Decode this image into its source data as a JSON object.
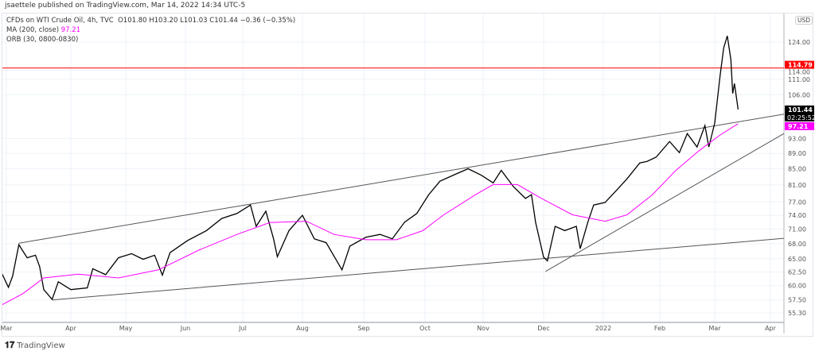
{
  "publisher": "jsaettele published on TradingView.com, Mar 14, 2022 14:34 UTC-5",
  "legend": {
    "symbol": "CFDs on WTI Crude Oil, 4h, TVC",
    "ohlc": "O101.80  H103.20  L101.03  C101.44  −0.36 (−0.35%)",
    "ma_label": "MA (200, close)",
    "ma_value": "97.21",
    "orb_label": "ORB (30, 0800-0830)"
  },
  "currency": "USD",
  "logo_text": "TradingView",
  "chart_data": {
    "type": "line",
    "y_scale": "log",
    "ylim": [
      54.5,
      132
    ],
    "grid": true,
    "y_ticks": [
      "124.00",
      "114.00",
      "111.00",
      "106.00",
      "93.00",
      "89.00",
      "85.00",
      "81.00",
      "77.00",
      "74.00",
      "71.00",
      "68.00",
      "65.00",
      "62.50",
      "60.00",
      "57.50",
      "55.30"
    ],
    "x_ticks": [
      {
        "label": "Mar",
        "date": "2021-03-01"
      },
      {
        "label": "Apr",
        "date": "2021-04-01"
      },
      {
        "label": "May",
        "date": "2021-05-01"
      },
      {
        "label": "Jun",
        "date": "2021-06-01"
      },
      {
        "label": "Jul",
        "date": "2021-07-01"
      },
      {
        "label": "Aug",
        "date": "2021-08-01"
      },
      {
        "label": "Sep",
        "date": "2021-09-01"
      },
      {
        "label": "Oct",
        "date": "2021-10-01"
      },
      {
        "label": "Nov",
        "date": "2021-11-01"
      },
      {
        "label": "Dec",
        "date": "2021-12-01"
      },
      {
        "label": "2022",
        "date": "2022-01-01"
      },
      {
        "label": "Feb",
        "date": "2022-02-01"
      },
      {
        "label": "Mar",
        "date": "2022-03-01"
      },
      {
        "label": "Apr",
        "date": "2022-04-01"
      }
    ],
    "series": [
      {
        "name": "CFDs on WTI Crude Oil",
        "color": "#000000",
        "points": [
          [
            "2021-02-26",
            62.9
          ],
          [
            "2021-03-02",
            59.7
          ],
          [
            "2021-03-04",
            61.7
          ],
          [
            "2021-03-07",
            67.8
          ],
          [
            "2021-03-11",
            65.2
          ],
          [
            "2021-03-15",
            65.7
          ],
          [
            "2021-03-17",
            63.5
          ],
          [
            "2021-03-19",
            59.3
          ],
          [
            "2021-03-23",
            57.6
          ],
          [
            "2021-03-26",
            60.7
          ],
          [
            "2021-04-01",
            59.3
          ],
          [
            "2021-04-10",
            59.6
          ],
          [
            "2021-04-13",
            63.1
          ],
          [
            "2021-04-20",
            62.0
          ],
          [
            "2021-04-27",
            65.2
          ],
          [
            "2021-05-04",
            66.0
          ],
          [
            "2021-05-10",
            64.9
          ],
          [
            "2021-05-16",
            65.7
          ],
          [
            "2021-05-20",
            61.9
          ],
          [
            "2021-05-24",
            66.2
          ],
          [
            "2021-06-02",
            68.6
          ],
          [
            "2021-06-12",
            70.7
          ],
          [
            "2021-06-20",
            73.3
          ],
          [
            "2021-06-28",
            74.4
          ],
          [
            "2021-07-05",
            76.3
          ],
          [
            "2021-07-08",
            71.6
          ],
          [
            "2021-07-13",
            74.9
          ],
          [
            "2021-07-17",
            69.0
          ],
          [
            "2021-07-19",
            65.4
          ],
          [
            "2021-07-25",
            70.7
          ],
          [
            "2021-08-01",
            74.0
          ],
          [
            "2021-08-07",
            69.0
          ],
          [
            "2021-08-13",
            68.2
          ],
          [
            "2021-08-21",
            62.9
          ],
          [
            "2021-08-25",
            67.5
          ],
          [
            "2021-09-02",
            69.3
          ],
          [
            "2021-09-09",
            69.9
          ],
          [
            "2021-09-15",
            69.0
          ],
          [
            "2021-09-21",
            72.5
          ],
          [
            "2021-09-27",
            74.4
          ],
          [
            "2021-10-03",
            78.7
          ],
          [
            "2021-10-09",
            81.9
          ],
          [
            "2021-10-18",
            83.8
          ],
          [
            "2021-10-24",
            85.0
          ],
          [
            "2021-10-31",
            83.4
          ],
          [
            "2021-11-06",
            81.5
          ],
          [
            "2021-11-10",
            84.6
          ],
          [
            "2021-11-16",
            80.6
          ],
          [
            "2021-11-22",
            77.8
          ],
          [
            "2021-11-25",
            78.7
          ],
          [
            "2021-11-27",
            72.5
          ],
          [
            "2021-12-01",
            65.3
          ],
          [
            "2021-12-03",
            64.6
          ],
          [
            "2021-12-07",
            71.6
          ],
          [
            "2021-12-12",
            70.7
          ],
          [
            "2021-12-18",
            71.6
          ],
          [
            "2021-12-20",
            67.0
          ],
          [
            "2021-12-24",
            72.5
          ],
          [
            "2021-12-27",
            76.3
          ],
          [
            "2022-01-02",
            76.9
          ],
          [
            "2022-01-08",
            79.6
          ],
          [
            "2022-01-14",
            82.5
          ],
          [
            "2022-01-21",
            86.5
          ],
          [
            "2022-01-25",
            86.9
          ],
          [
            "2022-01-30",
            88.0
          ],
          [
            "2022-02-06",
            92.2
          ],
          [
            "2022-02-11",
            89.2
          ],
          [
            "2022-02-15",
            94.4
          ],
          [
            "2022-02-20",
            90.7
          ],
          [
            "2022-02-24",
            96.7
          ],
          [
            "2022-02-26",
            90.7
          ],
          [
            "2022-03-01",
            97.4
          ],
          [
            "2022-03-04",
            112.3
          ],
          [
            "2022-03-06",
            121.9
          ],
          [
            "2022-03-08",
            126.3
          ],
          [
            "2022-03-10",
            117.7
          ],
          [
            "2022-03-11",
            106.4
          ],
          [
            "2022-03-12",
            109.6
          ],
          [
            "2022-03-14",
            101.44
          ]
        ]
      },
      {
        "name": "MA (200, close)",
        "color": "#ff00ff",
        "points": [
          [
            "2021-02-26",
            56.5
          ],
          [
            "2021-03-09",
            58.6
          ],
          [
            "2021-03-19",
            61.4
          ],
          [
            "2021-04-05",
            62.1
          ],
          [
            "2021-04-27",
            61.4
          ],
          [
            "2021-05-18",
            62.9
          ],
          [
            "2021-06-08",
            66.7
          ],
          [
            "2021-06-28",
            69.9
          ],
          [
            "2021-07-15",
            72.4
          ],
          [
            "2021-08-03",
            72.7
          ],
          [
            "2021-08-17",
            69.9
          ],
          [
            "2021-09-02",
            68.8
          ],
          [
            "2021-09-17",
            68.8
          ],
          [
            "2021-09-30",
            70.7
          ],
          [
            "2021-10-11",
            74.1
          ],
          [
            "2021-10-28",
            78.7
          ],
          [
            "2021-11-06",
            81.1
          ],
          [
            "2021-11-18",
            81.1
          ],
          [
            "2021-11-30",
            77.8
          ],
          [
            "2021-12-16",
            74.1
          ],
          [
            "2022-01-02",
            72.7
          ],
          [
            "2022-01-14",
            74.1
          ],
          [
            "2022-01-28",
            78.7
          ],
          [
            "2022-02-09",
            84.5
          ],
          [
            "2022-02-21",
            89.7
          ],
          [
            "2022-03-04",
            94.0
          ],
          [
            "2022-03-14",
            97.21
          ]
        ]
      }
    ],
    "trendlines": [
      {
        "from": [
          "2021-03-07",
          68.1
        ],
        "to": [
          "2022-03-01",
          96.6
        ],
        "color": "#555555"
      },
      {
        "from": [
          "2021-03-23",
          57.5
        ],
        "to": [
          "2022-03-01",
          67.9
        ],
        "color": "#555555"
      },
      {
        "from": [
          "2021-12-02",
          62.6
        ],
        "to": [
          "2022-03-01",
          83.8
        ],
        "color": "#555555"
      }
    ],
    "horizontal_line": {
      "value": 114.79,
      "label": "114.79",
      "color": "#ff0000"
    },
    "price_labels": [
      {
        "value": 101.44,
        "label": "101.44",
        "sub": "02:25:52",
        "bg": "#000000",
        "fg": "#ffffff"
      },
      {
        "value": 97.21,
        "label": "97.21",
        "bg": "#ff00ff",
        "fg": "#ffffff"
      }
    ]
  }
}
